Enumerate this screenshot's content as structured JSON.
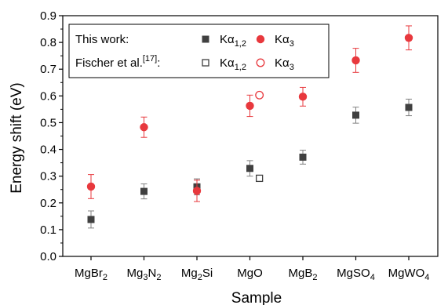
{
  "chart_data": {
    "type": "scatter",
    "xlabel": "Sample",
    "ylabel": "Energy shift (eV)",
    "ylim": [
      0.0,
      0.9
    ],
    "yticks": [
      "0.0",
      "0.1",
      "0.2",
      "0.3",
      "0.4",
      "0.5",
      "0.6",
      "0.7",
      "0.8",
      "0.9"
    ],
    "categories": [
      {
        "base": "MgBr",
        "sub": "2",
        "rest": "",
        "sub2": ""
      },
      {
        "base": "Mg",
        "sub": "3",
        "rest": "N",
        "sub2": "2"
      },
      {
        "base": "Mg",
        "sub": "2",
        "rest": "Si",
        "sub2": ""
      },
      {
        "base": "MgO",
        "sub": "",
        "rest": "",
        "sub2": ""
      },
      {
        "base": "MgB",
        "sub": "2",
        "rest": "",
        "sub2": ""
      },
      {
        "base": "MgSO",
        "sub": "4",
        "rest": "",
        "sub2": ""
      },
      {
        "base": "MgWO",
        "sub": "4",
        "rest": "",
        "sub2": ""
      }
    ],
    "legend": {
      "position": "top-left",
      "rows": [
        {
          "label": "This work:",
          "entries": [
            {
              "symbol": "filled-square",
              "color": "#404040",
              "name": "Kα",
              "sub": "1,2"
            },
            {
              "symbol": "filled-circle",
              "color": "#e8383d",
              "name": "Kα",
              "sub": "3"
            }
          ]
        },
        {
          "label": "Fischer et al.",
          "sup": "[17]",
          "label_end": ":",
          "entries": [
            {
              "symbol": "open-square",
              "color": "#404040",
              "name": "Kα",
              "sub": "1,2"
            },
            {
              "symbol": "open-circle",
              "color": "#e8383d",
              "name": "Kα",
              "sub": "3"
            }
          ]
        }
      ]
    },
    "series": [
      {
        "key": "this_ka12",
        "symbol": "filled-square",
        "color": "#404040",
        "errcolor": "#808080",
        "points": [
          {
            "x": 0,
            "y": 0.138,
            "err": 0.032
          },
          {
            "x": 1,
            "y": 0.243,
            "err": 0.028
          },
          {
            "x": 2,
            "y": 0.26,
            "err": 0.03
          },
          {
            "x": 3,
            "y": 0.329,
            "err": 0.029
          },
          {
            "x": 4,
            "y": 0.371,
            "err": 0.026
          },
          {
            "x": 5,
            "y": 0.528,
            "err": 0.03
          },
          {
            "x": 6,
            "y": 0.557,
            "err": 0.031
          }
        ]
      },
      {
        "key": "this_ka3",
        "symbol": "filled-circle",
        "color": "#e8383d",
        "errcolor": "#e8383d",
        "points": [
          {
            "x": 0,
            "y": 0.261,
            "err": 0.045
          },
          {
            "x": 1,
            "y": 0.483,
            "err": 0.038
          },
          {
            "x": 2,
            "y": 0.245,
            "err": 0.04
          },
          {
            "x": 3,
            "y": 0.563,
            "err": 0.04
          },
          {
            "x": 4,
            "y": 0.597,
            "err": 0.035
          },
          {
            "x": 5,
            "y": 0.733,
            "err": 0.045
          },
          {
            "x": 6,
            "y": 0.817,
            "err": 0.045
          }
        ]
      },
      {
        "key": "fischer_ka12",
        "symbol": "open-square",
        "color": "#404040",
        "points": [
          {
            "x": 3.18,
            "y": 0.292
          }
        ]
      },
      {
        "key": "fischer_ka3",
        "symbol": "open-circle",
        "color": "#e8383d",
        "points": [
          {
            "x": 3.18,
            "y": 0.603
          }
        ]
      }
    ]
  }
}
